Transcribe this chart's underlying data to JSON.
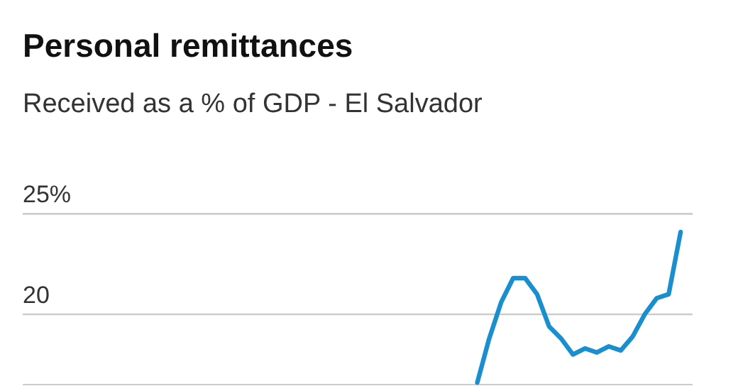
{
  "chart_data": {
    "type": "line",
    "title": "Personal remittances",
    "subtitle": "Received as a % of GDP - El Salvador",
    "categories": [
      null,
      null,
      null,
      null,
      null,
      null,
      null,
      null,
      null,
      null,
      null,
      null,
      null,
      null,
      null,
      null,
      null,
      null,
      null,
      null,
      null,
      null,
      null,
      null,
      null,
      null,
      null,
      null,
      null,
      null,
      null,
      null,
      null,
      null,
      null,
      null,
      null,
      null,
      null,
      null,
      null,
      null,
      null,
      null,
      null,
      null,
      null,
      null,
      null,
      null,
      null,
      null,
      null,
      null,
      null,
      null,
      null
    ],
    "series": [
      {
        "color": "#1a8fd0",
        "values": [
          null,
          null,
          null,
          null,
          null,
          null,
          null,
          null,
          null,
          null,
          null,
          null,
          null,
          null,
          null,
          null,
          null,
          null,
          null,
          null,
          null,
          null,
          null,
          null,
          null,
          null,
          null,
          null,
          null,
          null,
          null,
          null,
          null,
          null,
          null,
          null,
          null,
          null,
          16.6,
          18.8,
          20.6,
          21.8,
          21.8,
          21.0,
          19.4,
          18.8,
          18.0,
          18.3,
          18.1,
          18.4,
          18.2,
          18.9,
          20.0,
          20.8,
          21.0,
          24.1,
          null
        ]
      }
    ],
    "ylim": [
      16.5,
      25
    ],
    "yticks": [
      {
        "value": 20,
        "label": "20"
      },
      {
        "value": 25,
        "label": "25%"
      }
    ],
    "grid": "y",
    "tick_labels": "y",
    "marker": "none",
    "line_style": "solid"
  }
}
